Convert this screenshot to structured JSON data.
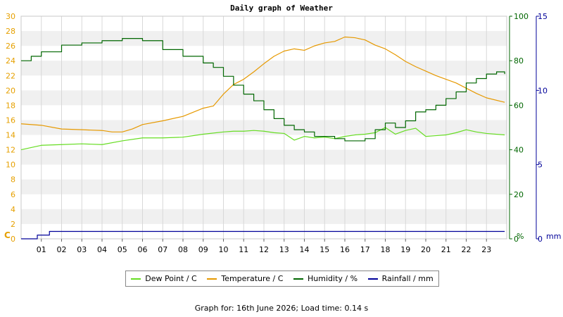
{
  "chart_data": {
    "type": "line",
    "title": "Daily graph of Weather",
    "x_ticks": [
      "01",
      "02",
      "03",
      "04",
      "05",
      "06",
      "07",
      "08",
      "09",
      "10",
      "11",
      "12",
      "13",
      "14",
      "15",
      "16",
      "17",
      "18",
      "19",
      "20",
      "21",
      "22",
      "23"
    ],
    "x_range": [
      0,
      24
    ],
    "axes": {
      "temp": {
        "label": "C",
        "range": [
          0,
          30
        ],
        "ticks": [
          0,
          2,
          4,
          6,
          8,
          10,
          12,
          14,
          16,
          18,
          20,
          22,
          24,
          26,
          28,
          30
        ],
        "color": "#e6a000"
      },
      "humidity": {
        "label": "%",
        "range": [
          0,
          100
        ],
        "ticks": [
          0,
          20,
          40,
          60,
          80,
          100
        ],
        "color": "#006600"
      },
      "rain": {
        "label": "mm",
        "range": [
          0,
          15
        ],
        "ticks": [
          0,
          5,
          10,
          15
        ],
        "color": "#000099"
      }
    },
    "grid": true,
    "series": [
      {
        "name": "Dew Point / C",
        "axis": "temp",
        "color": "#66dd22",
        "x": [
          0,
          1,
          2,
          3,
          4,
          5,
          6,
          7,
          8,
          9,
          10,
          10.5,
          11,
          11.5,
          12,
          12.5,
          13,
          13.5,
          14,
          14.5,
          15,
          15.5,
          16,
          16.5,
          17,
          17.5,
          18,
          18.5,
          19,
          19.5,
          20,
          20.5,
          21,
          21.5,
          22,
          22.5,
          23,
          23.9
        ],
        "y": [
          12.0,
          12.6,
          12.7,
          12.8,
          12.7,
          13.2,
          13.6,
          13.6,
          13.7,
          14.1,
          14.4,
          14.5,
          14.5,
          14.6,
          14.5,
          14.3,
          14.2,
          13.3,
          13.8,
          13.6,
          13.7,
          13.5,
          13.8,
          14.0,
          14.1,
          14.3,
          15.0,
          14.1,
          14.6,
          14.9,
          13.8,
          13.9,
          14.0,
          14.3,
          14.7,
          14.4,
          14.2,
          14.0
        ]
      },
      {
        "name": "Temperature / C",
        "axis": "temp",
        "color": "#e69900",
        "x": [
          0,
          1,
          2,
          3,
          4,
          4.5,
          5,
          5.5,
          6,
          7,
          8,
          9,
          9.5,
          10,
          10.5,
          11,
          11.5,
          12,
          12.5,
          13,
          13.5,
          14,
          14.5,
          15,
          15.5,
          16,
          16.5,
          17,
          17.5,
          18,
          18.5,
          19,
          19.5,
          20,
          20.5,
          21,
          21.5,
          22,
          22.5,
          23,
          23.9
        ],
        "y": [
          15.5,
          15.3,
          14.8,
          14.7,
          14.6,
          14.4,
          14.4,
          14.8,
          15.4,
          15.9,
          16.5,
          17.6,
          17.9,
          19.5,
          20.8,
          21.5,
          22.5,
          23.6,
          24.6,
          25.3,
          25.6,
          25.4,
          26.0,
          26.4,
          26.6,
          27.2,
          27.1,
          26.8,
          26.1,
          25.6,
          24.8,
          23.9,
          23.2,
          22.6,
          22.0,
          21.5,
          21.0,
          20.3,
          19.6,
          19.0,
          18.4
        ]
      },
      {
        "name": "Humidity / %",
        "axis": "humidity",
        "color": "#006600",
        "x": [
          0,
          0.5,
          1,
          2,
          3,
          4,
          5,
          6,
          7,
          8,
          9,
          9.5,
          10,
          10.5,
          11,
          11.5,
          12,
          12.5,
          13,
          13.5,
          14,
          14.5,
          15,
          15.5,
          16,
          16.5,
          17,
          17.5,
          18,
          18.5,
          19,
          19.5,
          20,
          20.5,
          21,
          21.5,
          22,
          22.5,
          23,
          23.5,
          23.9
        ],
        "y": [
          80,
          82,
          84,
          87,
          88,
          89,
          90,
          89,
          85,
          82,
          79,
          77,
          73,
          69,
          65,
          62,
          58,
          54,
          51,
          49,
          48,
          46,
          46,
          45,
          44,
          44,
          45,
          49,
          52,
          50,
          53,
          57,
          58,
          60,
          63,
          66,
          70,
          72,
          74,
          75,
          74
        ]
      },
      {
        "name": "Rainfall / mm",
        "axis": "rain",
        "color": "#000099",
        "x": [
          0,
          0.7,
          0.8,
          1.3,
          1.4,
          23.9
        ],
        "y": [
          0,
          0,
          0.25,
          0.25,
          0.5,
          0.5
        ]
      }
    ]
  },
  "footer": "Graph for: 16th June 2026; Load time: 0.14 s"
}
